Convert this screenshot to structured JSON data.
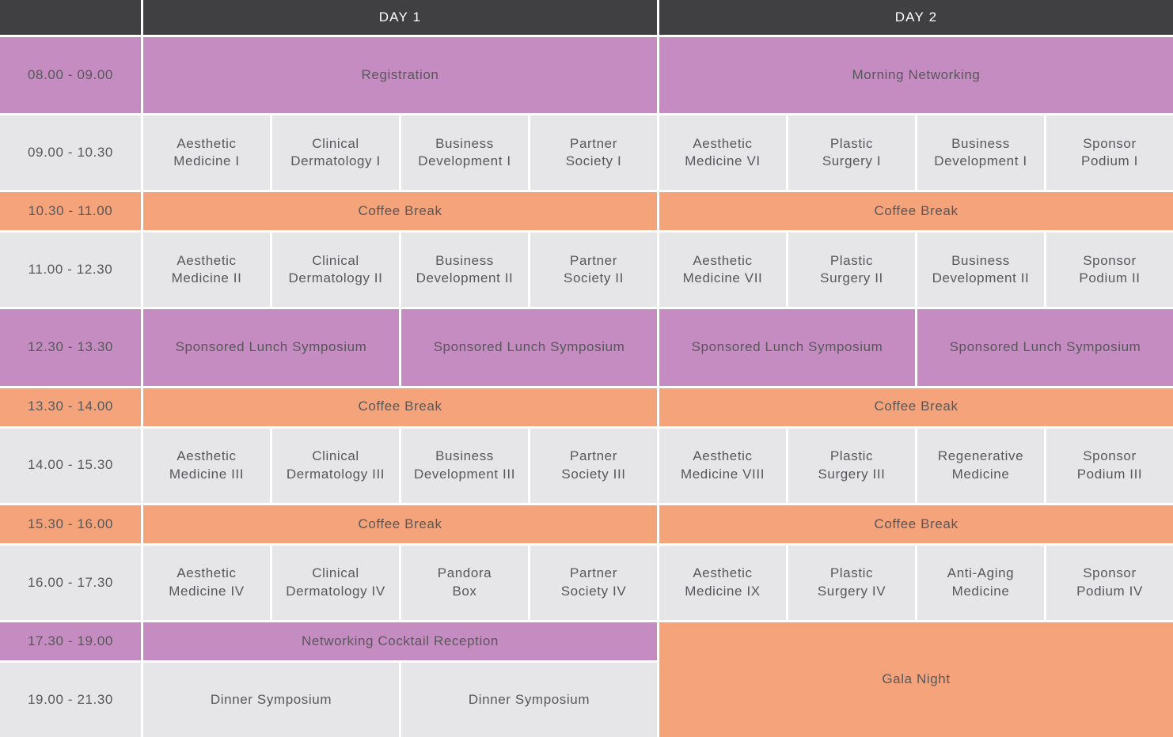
{
  "colors": {
    "header_bg": "#403f42",
    "header_text": "#ffffff",
    "purple": "#c58cc2",
    "orange": "#f5a37a",
    "gray": "#e6e5e8",
    "cell_text": "#58575a"
  },
  "header": {
    "day1": "DAY 1",
    "day2": "DAY 2"
  },
  "rows": {
    "r0800": {
      "time": "08.00 - 09.00",
      "day1": "Registration",
      "day2": "Morning Networking"
    },
    "r0900": {
      "time": "09.00 - 10.30",
      "day1": [
        "Aesthetic\nMedicine I",
        "Clinical\nDermatology I",
        "Business\nDevelopment I",
        "Partner\nSociety I"
      ],
      "day2": [
        "Aesthetic\nMedicine VI",
        "Plastic\nSurgery I",
        "Business\nDevelopment I",
        "Sponsor\nPodium I"
      ]
    },
    "r1030": {
      "time": "10.30 - 11.00",
      "day1": "Coffee Break",
      "day2": "Coffee Break"
    },
    "r1100": {
      "time": "11.00 - 12.30",
      "day1": [
        "Aesthetic\nMedicine II",
        "Clinical\nDermatology II",
        "Business\nDevelopment II",
        "Partner\nSociety II"
      ],
      "day2": [
        "Aesthetic\nMedicine VII",
        "Plastic\nSurgery II",
        "Business\nDevelopment II",
        "Sponsor\nPodium II"
      ]
    },
    "r1230": {
      "time": "12.30 - 13.30",
      "cells": [
        "Sponsored Lunch Symposium",
        "Sponsored Lunch Symposium",
        "Sponsored Lunch Symposium",
        "Sponsored Lunch Symposium"
      ]
    },
    "r1330": {
      "time": "13.30 - 14.00",
      "day1": "Coffee Break",
      "day2": "Coffee Break"
    },
    "r1400": {
      "time": "14.00 - 15.30",
      "day1": [
        "Aesthetic\nMedicine III",
        "Clinical\nDermatology III",
        "Business\nDevelopment III",
        "Partner\nSociety III"
      ],
      "day2": [
        "Aesthetic\nMedicine VIII",
        "Plastic\nSurgery III",
        "Regenerative\nMedicine",
        "Sponsor\nPodium III"
      ]
    },
    "r1530": {
      "time": "15.30 - 16.00",
      "day1": "Coffee Break",
      "day2": "Coffee Break"
    },
    "r1600": {
      "time": "16.00 - 17.30",
      "day1": [
        "Aesthetic\nMedicine IV",
        "Clinical\nDermatology IV",
        "Pandora\nBox",
        "Partner\nSociety IV"
      ],
      "day2": [
        "Aesthetic\nMedicine IX",
        "Plastic\nSurgery IV",
        "Anti-Aging\nMedicine",
        "Sponsor\nPodium IV"
      ]
    },
    "r1730": {
      "time": "17.30 - 19.00",
      "day1": "Networking Cocktail Reception"
    },
    "r1900": {
      "time": "19.00 - 21.30",
      "day1": [
        "Dinner Symposium",
        "Dinner Symposium"
      ]
    },
    "gala": "Gala Night"
  }
}
